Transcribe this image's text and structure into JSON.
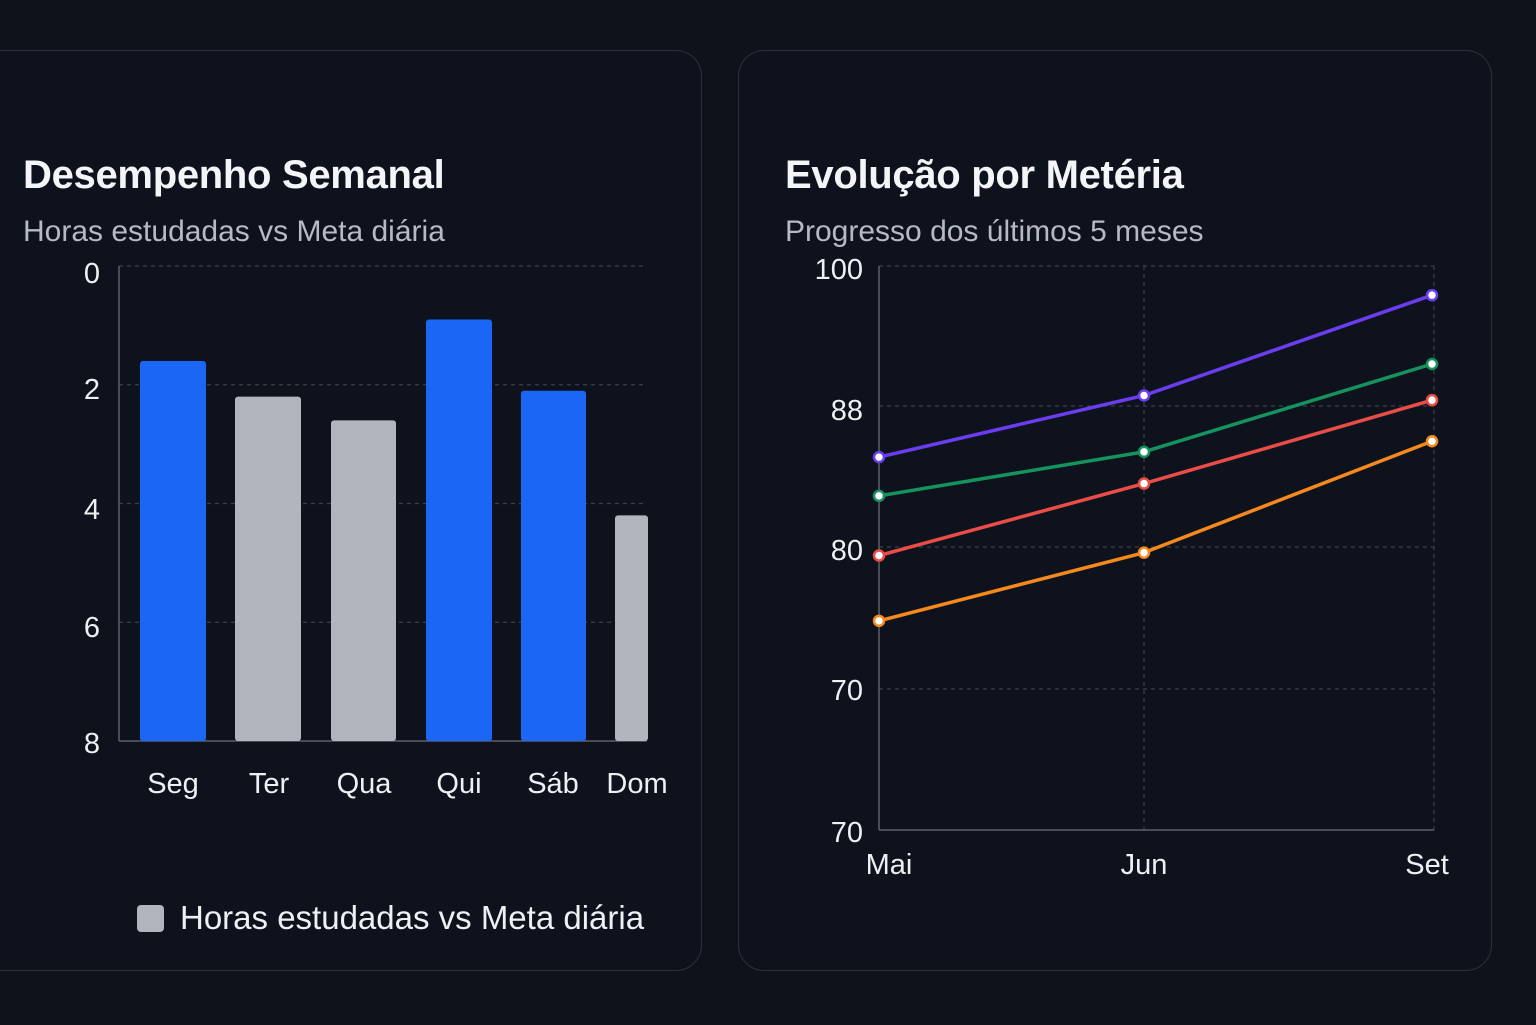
{
  "colors": {
    "background": "#0e121b",
    "card_border": "#2b303b",
    "highlight_bar": "#1b66f5",
    "neutral_bar": "#b2b5bd",
    "grid": "#3a404c"
  },
  "bar_card": {
    "title": "Desempenho Semanal",
    "subtitle": "Horas estudadas vs Meta diária",
    "legend_label": "Horas estudadas vs Meta diária"
  },
  "line_card": {
    "title": "Evolução por Metéria",
    "subtitle": "Progresso dos últimos 5 meses"
  },
  "chart_data": [
    {
      "type": "bar",
      "title": "Desempenho Semanal",
      "subtitle": "Horas estudadas vs Meta diária",
      "categories": [
        "Seg",
        "Ter",
        "Qua",
        "Qui",
        "Sáb",
        "Dom"
      ],
      "values": [
        6.4,
        5.8,
        5.4,
        7.1,
        5.9,
        3.8
      ],
      "highlighted": [
        true,
        false,
        false,
        true,
        true,
        false
      ],
      "y_ticks": [
        "0",
        "2",
        "4",
        "6",
        "8"
      ],
      "ylim": [
        0,
        8
      ],
      "grid": true,
      "legend": [
        "Horas estudadas vs Meta diária"
      ],
      "legend_position": "bottom"
    },
    {
      "type": "line",
      "title": "Evolução por Metéria",
      "subtitle": "Progresso dos últimos 5 meses",
      "x": [
        "Mai",
        "Jun",
        "Set"
      ],
      "y_ticks": [
        "70",
        "70",
        "80",
        "88",
        "100"
      ],
      "grid": true,
      "series": [
        {
          "color": "#6a3df0",
          "values": [
            85.1,
            88.9,
            97.5
          ]
        },
        {
          "color": "#16925f",
          "values": [
            82.9,
            85.4,
            91.6
          ]
        },
        {
          "color": "#ea4d48",
          "values": [
            79.4,
            83.6,
            88.5
          ]
        },
        {
          "color": "#f5891e",
          "values": [
            74.8,
            79.6,
            86.0
          ]
        }
      ]
    }
  ]
}
